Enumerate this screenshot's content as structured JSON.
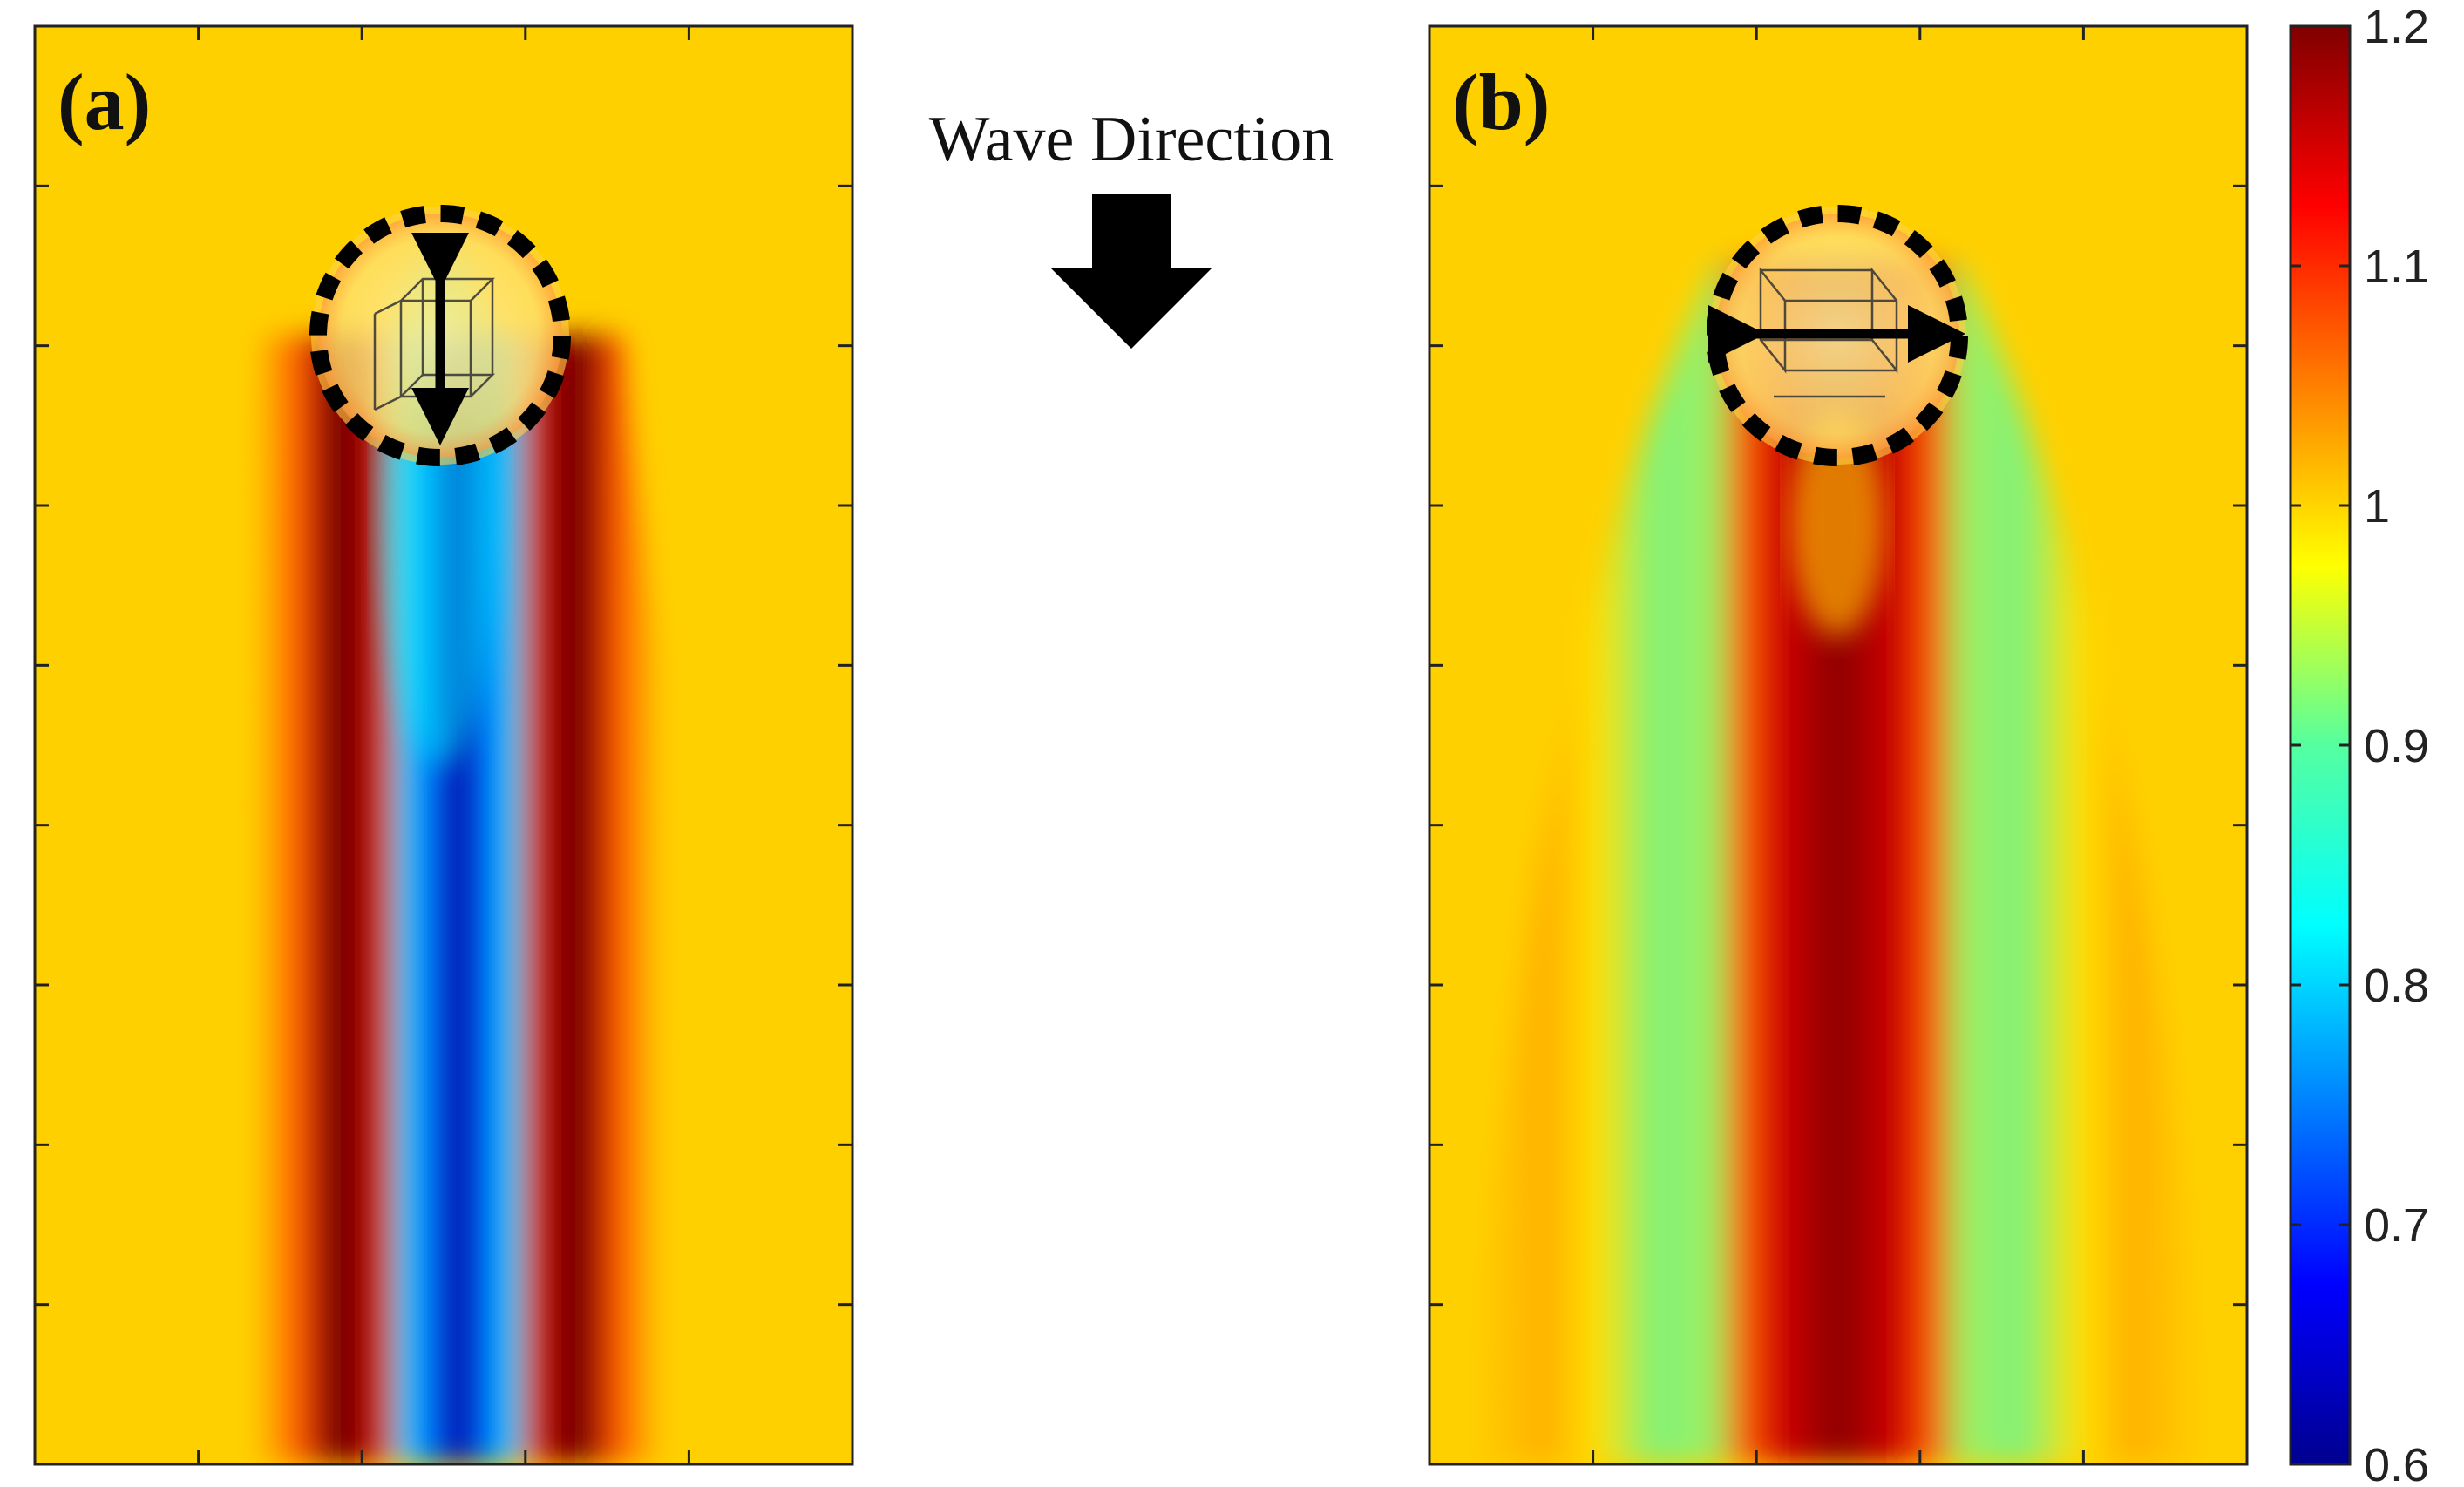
{
  "annotations": {
    "wave_direction": "Wave Direction",
    "arrow_icon": "down-arrow-icon"
  },
  "chart_data": [
    {
      "type": "heatmap",
      "panel_label": "(a)",
      "title": "",
      "xlabel": "",
      "ylabel": "",
      "colormap": "jet",
      "scatterer": {
        "shape": "circle",
        "outline": "dashed",
        "inset": "hexagonal-unit-cell-icon",
        "polarization": "vertical"
      },
      "field_pattern": [
        {
          "region": "background",
          "value": 1.02
        },
        {
          "region": "outer-side-lobes",
          "value": 1.2
        },
        {
          "region": "inner-shadow",
          "value": 0.62
        }
      ],
      "grid": false
    },
    {
      "type": "heatmap",
      "panel_label": "(b)",
      "title": "",
      "xlabel": "",
      "ylabel": "",
      "colormap": "jet",
      "scatterer": {
        "shape": "circle",
        "outline": "dashed",
        "inset": "hexagonal-unit-cell-icon",
        "polarization": "horizontal"
      },
      "field_pattern": [
        {
          "region": "background",
          "value": 1.02
        },
        {
          "region": "outer-side-lobes",
          "value": 0.9
        },
        {
          "region": "central-beam",
          "value": 1.18
        }
      ],
      "grid": false
    }
  ],
  "colorbar": {
    "min": 0.6,
    "max": 1.2,
    "ticks": [
      "1.2",
      "1.1",
      "1",
      "0.9",
      "0.8",
      "0.7",
      "0.6"
    ],
    "tick_values": [
      1.2,
      1.1,
      1.0,
      0.9,
      0.8,
      0.7,
      0.6
    ]
  }
}
